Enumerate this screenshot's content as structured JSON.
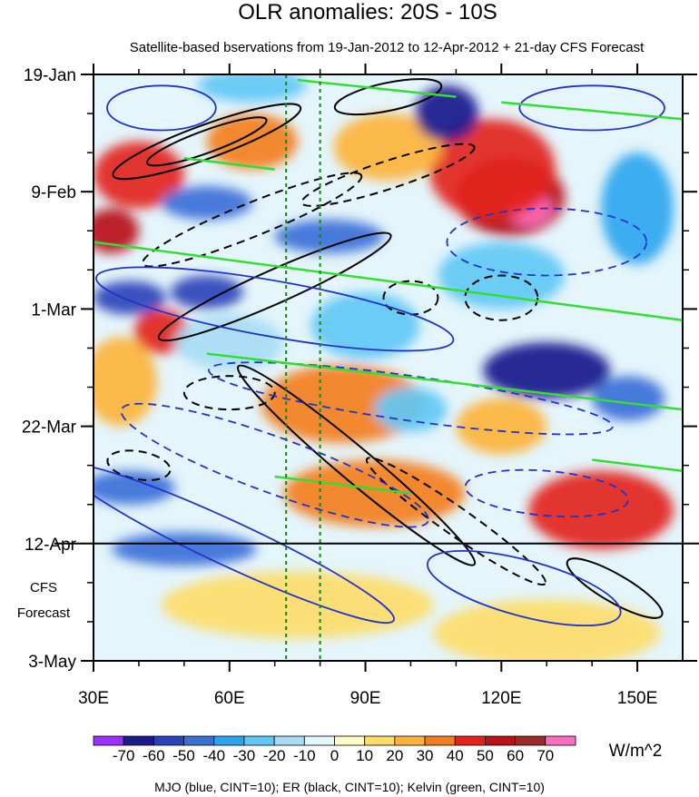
{
  "chart_data": {
    "type": "heatmap",
    "title": "OLR anomalies: 20S - 10S",
    "subtitle": "Satellite-based bservations from 19-Jan-2012 to 12-Apr-2012 + 21-day CFS Forecast",
    "x_axis": {
      "label": "",
      "range": [
        30,
        160
      ],
      "ticks": [
        {
          "value": 30,
          "label": "30E"
        },
        {
          "value": 60,
          "label": "60E"
        },
        {
          "value": 90,
          "label": "90E"
        },
        {
          "value": 120,
          "label": "120E"
        },
        {
          "value": 150,
          "label": "150E"
        }
      ]
    },
    "y_axis": {
      "label": "",
      "range_days": [
        0,
        105
      ],
      "direction": "time increases downward",
      "ticks": [
        {
          "day": 0,
          "label": "19-Jan"
        },
        {
          "day": 21,
          "label": "9-Feb"
        },
        {
          "day": 42,
          "label": "1-Mar"
        },
        {
          "day": 63,
          "label": "22-Mar"
        },
        {
          "day": 84,
          "label": "12-Apr"
        },
        {
          "day": 105,
          "label": "3-May"
        }
      ]
    },
    "forecast_start_day": 84,
    "forecast_label": [
      "CFS",
      "Forecast"
    ],
    "reference_longitudes": [
      72.5,
      80
    ],
    "colorbar": {
      "unit": "W/m^2",
      "levels": [
        -70,
        -60,
        -50,
        -40,
        -30,
        -20,
        -10,
        0,
        10,
        20,
        30,
        40,
        50,
        60,
        70
      ],
      "colors": [
        "#9b30ff",
        "#1a1a8c",
        "#2b42b8",
        "#3b6fd8",
        "#2aa6ef",
        "#61c8f5",
        "#a8dcf5",
        "#e4f5fb",
        "#fffbc8",
        "#fddc6a",
        "#fdb33a",
        "#f37e1f",
        "#e3231c",
        "#b8121a",
        "#9c2a2a",
        "#ff6fbf"
      ]
    },
    "anomaly_regions": [
      {
        "lon": 40,
        "day": 18,
        "value": 45,
        "rx": 10,
        "ry": 6
      },
      {
        "lon": 34,
        "day": 28,
        "value": 50,
        "rx": 6,
        "ry": 4
      },
      {
        "lon": 45,
        "day": 46,
        "value": 45,
        "rx": 6,
        "ry": 4
      },
      {
        "lon": 122,
        "day": 22,
        "value": 55,
        "rx": 12,
        "ry": 7
      },
      {
        "lon": 126,
        "day": 24,
        "value": 75,
        "rx": 5,
        "ry": 3
      },
      {
        "lon": 118,
        "day": 17,
        "value": 40,
        "rx": 14,
        "ry": 9
      },
      {
        "lon": 65,
        "day": 12,
        "value": 30,
        "rx": 10,
        "ry": 5
      },
      {
        "lon": 95,
        "day": 13,
        "value": 25,
        "rx": 12,
        "ry": 6
      },
      {
        "lon": 85,
        "day": 59,
        "value": 30,
        "rx": 18,
        "ry": 7
      },
      {
        "lon": 92,
        "day": 75,
        "value": 30,
        "rx": 20,
        "ry": 6
      },
      {
        "lon": 142,
        "day": 78,
        "value": 40,
        "rx": 16,
        "ry": 7
      },
      {
        "lon": 36,
        "day": 55,
        "value": 25,
        "rx": 8,
        "ry": 8
      },
      {
        "lon": 120,
        "day": 63,
        "value": 20,
        "rx": 10,
        "ry": 5
      },
      {
        "lon": 75,
        "day": 95,
        "value": 15,
        "rx": 30,
        "ry": 6
      },
      {
        "lon": 130,
        "day": 100,
        "value": 10,
        "rx": 25,
        "ry": 6
      },
      {
        "lon": 108,
        "day": 7,
        "value": -65,
        "rx": 7,
        "ry": 5
      },
      {
        "lon": 38,
        "day": 40,
        "value": -60,
        "rx": 8,
        "ry": 3
      },
      {
        "lon": 55,
        "day": 39,
        "value": -55,
        "rx": 8,
        "ry": 3
      },
      {
        "lon": 55,
        "day": 23,
        "value": -50,
        "rx": 10,
        "ry": 3
      },
      {
        "lon": 82,
        "day": 29,
        "value": -50,
        "rx": 12,
        "ry": 3
      },
      {
        "lon": 130,
        "day": 53,
        "value": -65,
        "rx": 14,
        "ry": 5
      },
      {
        "lon": 148,
        "day": 58,
        "value": -50,
        "rx": 8,
        "ry": 4
      },
      {
        "lon": 38,
        "day": 74,
        "value": -45,
        "rx": 10,
        "ry": 3
      },
      {
        "lon": 50,
        "day": 85,
        "value": -45,
        "rx": 16,
        "ry": 3
      },
      {
        "lon": 120,
        "day": 36,
        "value": -30,
        "rx": 14,
        "ry": 6
      },
      {
        "lon": 90,
        "day": 45,
        "value": -25,
        "rx": 12,
        "ry": 6
      },
      {
        "lon": 60,
        "day": 48,
        "value": -20,
        "rx": 12,
        "ry": 5
      },
      {
        "lon": 150,
        "day": 24,
        "value": -35,
        "rx": 8,
        "ry": 10
      },
      {
        "lon": 65,
        "day": 2,
        "value": -30,
        "rx": 12,
        "ry": 3
      },
      {
        "lon": 100,
        "day": 60,
        "value": -25,
        "rx": 8,
        "ry": 4
      }
    ],
    "contour_systems": [
      {
        "name": "MJO",
        "color": "#2233cc",
        "cint": 10
      },
      {
        "name": "ER",
        "color": "#000000",
        "cint": 10
      },
      {
        "name": "Kelvin",
        "color": "#33dd33",
        "cint": 10
      }
    ],
    "contours": [
      {
        "system": "ER",
        "lon": 55,
        "day": 12,
        "a": 22,
        "b": 3,
        "angle": -20,
        "dashed": false
      },
      {
        "system": "ER",
        "lon": 55,
        "day": 12,
        "a": 14,
        "b": 2,
        "angle": -20,
        "dashed": false
      },
      {
        "system": "ER",
        "lon": 95,
        "day": 4,
        "a": 12,
        "b": 2.5,
        "angle": -12,
        "dashed": false
      },
      {
        "system": "ER",
        "lon": 65,
        "day": 26,
        "a": 26,
        "b": 3,
        "angle": -22,
        "dashed": true
      },
      {
        "system": "ER",
        "lon": 95,
        "day": 18,
        "a": 20,
        "b": 2.5,
        "angle": -18,
        "dashed": true
      },
      {
        "system": "ER",
        "lon": 70,
        "day": 38,
        "a": 28,
        "b": 3,
        "angle": -24,
        "dashed": false
      },
      {
        "system": "ER",
        "lon": 120,
        "day": 40,
        "a": 8,
        "b": 4,
        "angle": 0,
        "dashed": true
      },
      {
        "system": "ER",
        "lon": 100,
        "day": 40,
        "a": 6,
        "b": 3,
        "angle": 0,
        "dashed": true
      },
      {
        "system": "ER",
        "lon": 88,
        "day": 70,
        "a": 34,
        "b": 3,
        "angle": 40,
        "dashed": false
      },
      {
        "system": "ER",
        "lon": 110,
        "day": 80,
        "a": 24,
        "b": 2.5,
        "angle": 35,
        "dashed": true
      },
      {
        "system": "ER",
        "lon": 145,
        "day": 92,
        "a": 12,
        "b": 2.5,
        "angle": 30,
        "dashed": false
      },
      {
        "system": "ER",
        "lon": 60,
        "day": 57,
        "a": 10,
        "b": 3,
        "angle": 0,
        "dashed": true
      },
      {
        "system": "ER",
        "lon": 40,
        "day": 70,
        "a": 7,
        "b": 2.5,
        "angle": 10,
        "dashed": true
      },
      {
        "system": "MJO",
        "lon": 70,
        "day": 42,
        "a": 40,
        "b": 5,
        "angle": 10,
        "dashed": false
      },
      {
        "system": "MJO",
        "lon": 100,
        "day": 58,
        "a": 45,
        "b": 4,
        "angle": 8,
        "dashed": true
      },
      {
        "system": "MJO",
        "lon": 70,
        "day": 70,
        "a": 36,
        "b": 5,
        "angle": 20,
        "dashed": true
      },
      {
        "system": "MJO",
        "lon": 130,
        "day": 30,
        "a": 22,
        "b": 6,
        "angle": 0,
        "dashed": true
      },
      {
        "system": "MJO",
        "lon": 140,
        "day": 6,
        "a": 16,
        "b": 4,
        "angle": 0,
        "dashed": false
      },
      {
        "system": "MJO",
        "lon": 60,
        "day": 84,
        "a": 40,
        "b": 4,
        "angle": 25,
        "dashed": false
      },
      {
        "system": "MJO",
        "lon": 125,
        "day": 92,
        "a": 22,
        "b": 5,
        "angle": 15,
        "dashed": false
      },
      {
        "system": "MJO",
        "lon": 130,
        "day": 75,
        "a": 18,
        "b": 4,
        "angle": 5,
        "dashed": true
      },
      {
        "system": "MJO",
        "lon": 45,
        "day": 6,
        "a": 12,
        "b": 4,
        "angle": 0,
        "dashed": false
      }
    ],
    "kelvin_lines": [
      {
        "lon1": 30,
        "day1": 30,
        "lon2": 160,
        "day2": 44
      },
      {
        "lon1": 75,
        "day1": 1,
        "lon2": 110,
        "day2": 4
      },
      {
        "lon1": 120,
        "day1": 5,
        "lon2": 160,
        "day2": 8
      },
      {
        "lon1": 55,
        "day1": 50,
        "lon2": 160,
        "day2": 60
      },
      {
        "lon1": 70,
        "day1": 72,
        "lon2": 100,
        "day2": 75
      },
      {
        "lon1": 140,
        "day1": 69,
        "lon2": 160,
        "day2": 71
      },
      {
        "lon1": 50,
        "day1": 15,
        "lon2": 70,
        "day2": 17
      }
    ]
  },
  "legend_caption": "MJO (blue, CINT=10); ER (black, CINT=10); Kelvin (green, CINT=10)"
}
